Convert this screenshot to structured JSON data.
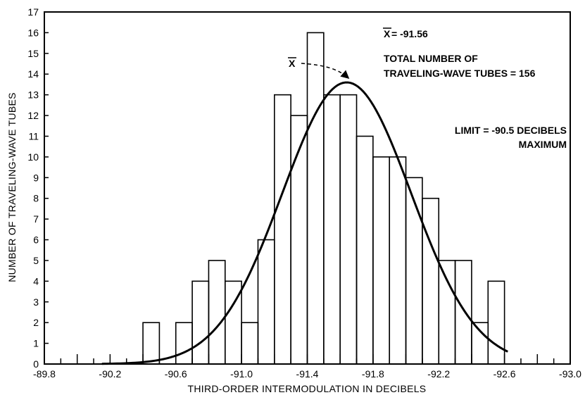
{
  "chart_data": {
    "type": "bar",
    "title": "",
    "xlabel": "THIRD-ORDER INTERMODULATION IN DECIBELS",
    "ylabel": "NUMBER OF TRAVELING-WAVE TUBES",
    "x_ticks": [
      -89.8,
      -90.2,
      -90.6,
      -91.0,
      -91.4,
      -91.8,
      -92.2,
      -92.6,
      -93.0
    ],
    "x_tick_labels": [
      "-89.8",
      "-90.2",
      "-90.6",
      "-91.0",
      "-91.4",
      "-91.8",
      "-92.2",
      "-92.6",
      "-93.0"
    ],
    "xlim": [
      -89.8,
      -93.0
    ],
    "x_reversed": true,
    "ylim": [
      0,
      17
    ],
    "y_ticks": [
      0,
      1,
      2,
      3,
      4,
      5,
      6,
      7,
      8,
      9,
      10,
      11,
      12,
      13,
      14,
      15,
      16,
      17
    ],
    "bin_width": 0.1,
    "bars": [
      {
        "x_start": -90.4,
        "x_end": -90.5,
        "count": 2
      },
      {
        "x_start": -90.6,
        "x_end": -90.7,
        "count": 2
      },
      {
        "x_start": -90.7,
        "x_end": -90.8,
        "count": 4
      },
      {
        "x_start": -90.8,
        "x_end": -90.9,
        "count": 5
      },
      {
        "x_start": -90.9,
        "x_end": -91.0,
        "count": 4
      },
      {
        "x_start": -91.0,
        "x_end": -91.1,
        "count": 2
      },
      {
        "x_start": -91.1,
        "x_end": -91.2,
        "count": 6
      },
      {
        "x_start": -91.2,
        "x_end": -91.3,
        "count": 13
      },
      {
        "x_start": -91.3,
        "x_end": -91.4,
        "count": 12
      },
      {
        "x_start": -91.4,
        "x_end": -91.5,
        "count": 16
      },
      {
        "x_start": -91.5,
        "x_end": -91.6,
        "count": 13
      },
      {
        "x_start": -91.6,
        "x_end": -91.7,
        "count": 13
      },
      {
        "x_start": -91.7,
        "x_end": -91.8,
        "count": 11
      },
      {
        "x_start": -91.8,
        "x_end": -91.9,
        "count": 10
      },
      {
        "x_start": -91.9,
        "x_end": -92.0,
        "count": 10
      },
      {
        "x_start": -92.0,
        "x_end": -92.1,
        "count": 9
      },
      {
        "x_start": -92.1,
        "x_end": -92.2,
        "count": 8
      },
      {
        "x_start": -92.2,
        "x_end": -92.3,
        "count": 5
      },
      {
        "x_start": -92.3,
        "x_end": -92.4,
        "count": 5
      },
      {
        "x_start": -92.4,
        "x_end": -92.5,
        "count": 2
      },
      {
        "x_start": -92.5,
        "x_end": -92.6,
        "count": 4
      }
    ],
    "curve": {
      "type": "normal",
      "mean": -91.64,
      "sd": 0.392,
      "peak": 13.6,
      "x_range": [
        -90.15,
        -92.62
      ]
    },
    "mean_arrow_label": "X",
    "annotations": {
      "mean_symbol": "X",
      "mean_value": " = -91.56",
      "total_line1": "TOTAL NUMBER OF",
      "total_line2": "TRAVELING-WAVE TUBES = 156",
      "limit_line1": "LIMIT = -90.5 DECIBELS",
      "limit_line2": "MAXIMUM"
    },
    "grid": false,
    "legend": "none"
  }
}
